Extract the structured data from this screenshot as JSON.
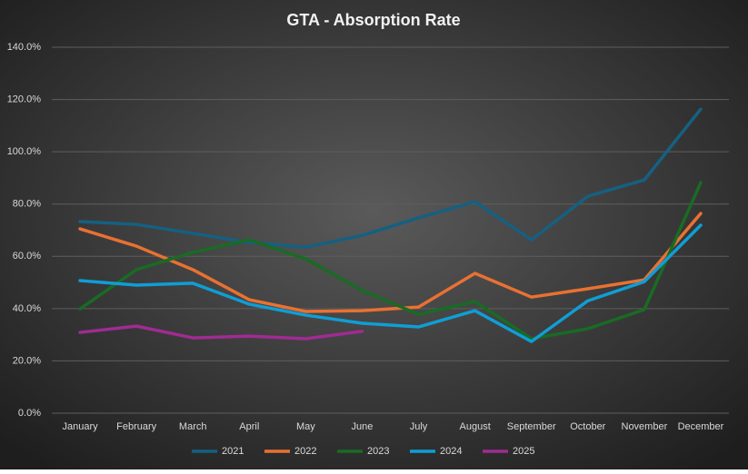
{
  "chart_data": {
    "type": "line",
    "title": "GTA - Absorption Rate",
    "categories": [
      "January",
      "February",
      "March",
      "April",
      "May",
      "June",
      "July",
      "August",
      "September",
      "October",
      "November",
      "December"
    ],
    "ylim": [
      0,
      140
    ],
    "yticks": [
      {
        "value": 0,
        "label": "0.0%"
      },
      {
        "value": 20,
        "label": "20.0%"
      },
      {
        "value": 40,
        "label": "40.0%"
      },
      {
        "value": 60,
        "label": "60.0%"
      },
      {
        "value": 80,
        "label": "80.0%"
      },
      {
        "value": 100,
        "label": "100.0%"
      },
      {
        "value": 120,
        "label": "120.0%"
      },
      {
        "value": 140,
        "label": "140.0%"
      }
    ],
    "grid": true,
    "legend": "bottom",
    "series": [
      {
        "name": "2021",
        "color": "#156082",
        "values": [
          73.3,
          72.2,
          68.8,
          65.3,
          63.5,
          68,
          74.7,
          80.9,
          66.3,
          83,
          89.2,
          116.3
        ]
      },
      {
        "name": "2022",
        "color": "#e97132",
        "values": [
          70.5,
          63.9,
          54.9,
          43.4,
          38.9,
          39.2,
          40.6,
          53.5,
          44.4,
          47.6,
          51,
          76.4
        ]
      },
      {
        "name": "2023",
        "color": "#196b24",
        "values": [
          39.9,
          54.9,
          61.5,
          66.3,
          59,
          46.9,
          37.8,
          42.7,
          28.5,
          32.3,
          39.6,
          88.2
        ]
      },
      {
        "name": "2024",
        "color": "#0f9ed5",
        "values": [
          50.7,
          49,
          49.7,
          41.7,
          37.5,
          34.4,
          33,
          39.2,
          27.4,
          43,
          50.3,
          71.9
        ]
      },
      {
        "name": "2025",
        "color": "#a02b93",
        "values": [
          30.9,
          33.3,
          28.8,
          29.5,
          28.5,
          31.3,
          null,
          null,
          null,
          null,
          null,
          null
        ]
      }
    ]
  }
}
